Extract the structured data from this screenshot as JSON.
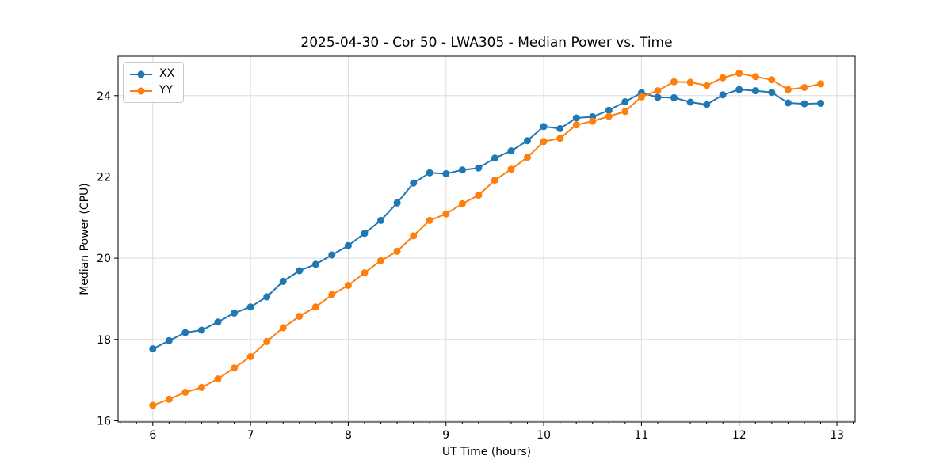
{
  "page": {
    "background": "#ffffff"
  },
  "style": {
    "grid_color": "#dcdcdc",
    "spine_color": "#000000",
    "text_color": "#000000",
    "tick_font_px": 14
  },
  "chart_data": {
    "type": "line",
    "title": "2025-04-30 - Cor 50 - LWA305 - Median Power vs. Time",
    "xlabel": "UT Time (hours)",
    "ylabel": "Median Power (CPU)",
    "xlim": [
      5.645,
      13.186
    ],
    "ylim": [
      15.97,
      24.97
    ],
    "xticks": [
      6,
      7,
      8,
      9,
      10,
      11,
      12,
      13
    ],
    "yticks": [
      16,
      18,
      20,
      22,
      24
    ],
    "x_minor_divisions": 6,
    "grid": "major-only",
    "legend_position": "upper-left",
    "marker": "circle",
    "x": [
      6.0,
      6.167,
      6.333,
      6.5,
      6.667,
      6.833,
      7.0,
      7.167,
      7.333,
      7.5,
      7.667,
      7.833,
      8.0,
      8.167,
      8.333,
      8.5,
      8.667,
      8.833,
      9.0,
      9.167,
      9.333,
      9.5,
      9.667,
      9.833,
      10.0,
      10.167,
      10.333,
      10.5,
      10.667,
      10.833,
      11.0,
      11.167,
      11.333,
      11.5,
      11.667,
      11.833,
      12.0,
      12.167,
      12.333,
      12.5,
      12.667,
      12.833
    ],
    "series": [
      {
        "name": "XX",
        "color": "#1f77b4",
        "values": [
          17.77,
          17.97,
          18.17,
          18.23,
          18.43,
          18.65,
          18.8,
          19.05,
          19.43,
          19.69,
          19.85,
          20.08,
          20.31,
          20.61,
          20.93,
          21.36,
          21.85,
          22.1,
          22.08,
          22.17,
          22.22,
          22.46,
          22.64,
          22.89,
          23.24,
          23.19,
          23.45,
          23.48,
          23.64,
          23.85,
          24.07,
          23.96,
          23.95,
          23.84,
          23.78,
          24.02,
          24.15,
          24.12,
          24.08,
          23.82,
          23.8,
          23.81
        ]
      },
      {
        "name": "YY",
        "color": "#ff7f0e",
        "values": [
          16.38,
          16.53,
          16.7,
          16.82,
          17.03,
          17.3,
          17.58,
          17.95,
          18.29,
          18.57,
          18.8,
          19.1,
          19.33,
          19.64,
          19.94,
          20.17,
          20.55,
          20.93,
          21.09,
          21.34,
          21.55,
          21.92,
          22.19,
          22.48,
          22.87,
          22.95,
          23.28,
          23.37,
          23.49,
          23.61,
          23.97,
          24.12,
          24.34,
          24.33,
          24.25,
          24.44,
          24.55,
          24.47,
          24.39,
          24.15,
          24.2,
          24.29
        ]
      }
    ]
  }
}
